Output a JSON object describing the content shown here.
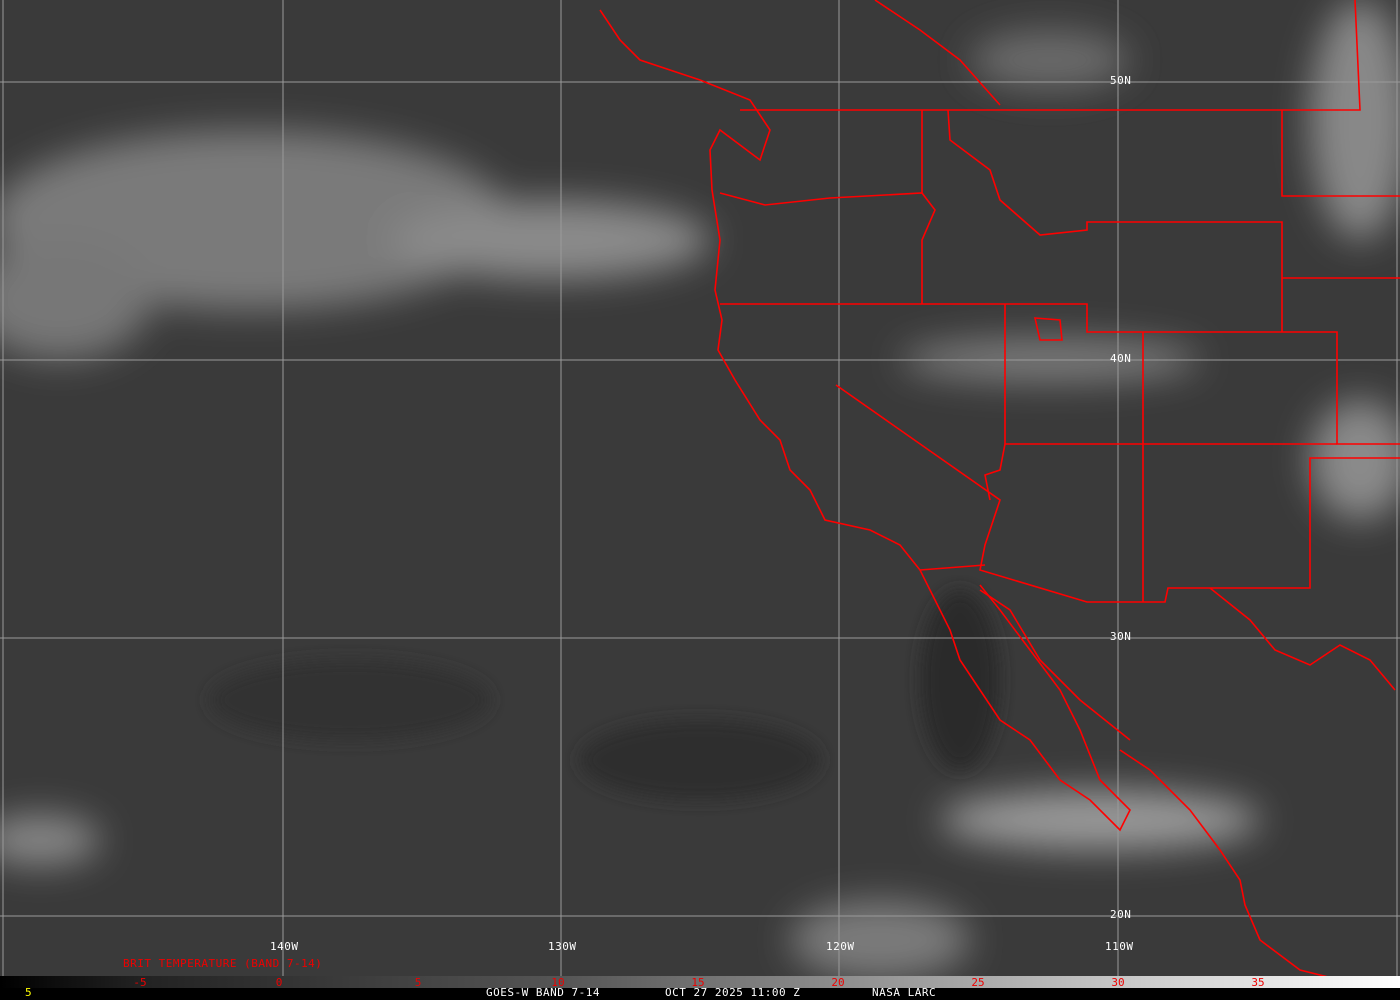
{
  "map": {
    "longitude_labels": [
      "140W",
      "130W",
      "120W",
      "110W"
    ],
    "latitude_labels": [
      "50N",
      "40N",
      "30N",
      "20N"
    ],
    "border_color": "#ff0000",
    "grid_color": "#9a9a9a"
  },
  "legend": {
    "title": "BRIT TEMPERATURE (BAND 7-14)",
    "ticks": [
      "-5",
      "0",
      "5",
      "10",
      "15",
      "20",
      "25",
      "30",
      "35"
    ],
    "colormap": "grayscale black-to-white"
  },
  "footer": {
    "left_value": "5",
    "satellite": "GOES-W BAND 7-14",
    "datetime": "OCT 27 2025 11:00 Z",
    "source": "NASA LARC"
  }
}
